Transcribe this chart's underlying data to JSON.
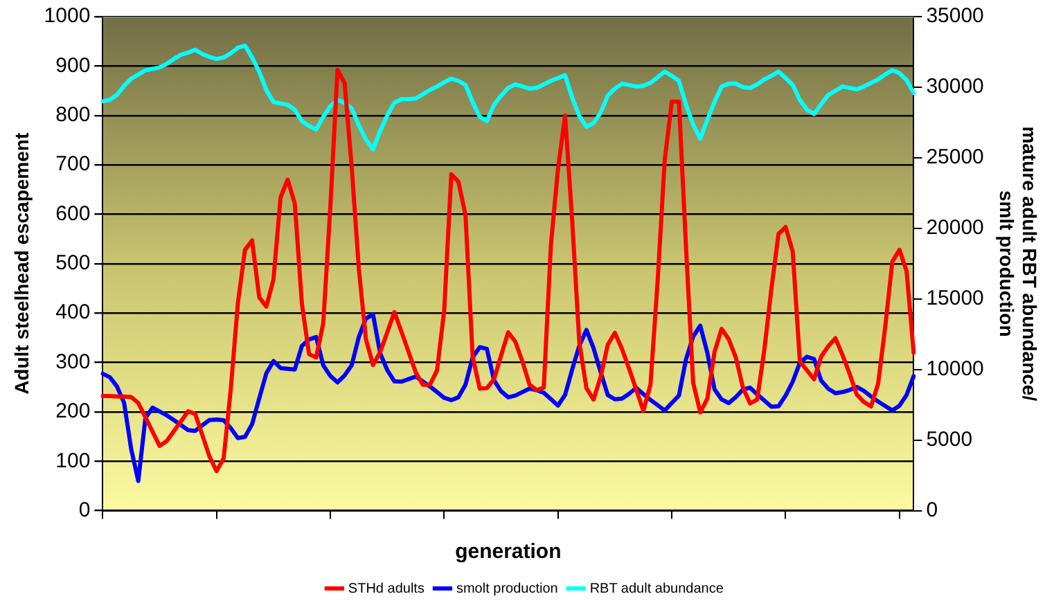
{
  "chart_data": {
    "type": "line",
    "xlabel": "generation",
    "ylabel": "Adult steelhead escapement",
    "y2label": "mature adult RBT abundance/ smlt production",
    "categories": [
      null,
      null,
      null,
      null,
      null,
      null,
      null,
      null,
      null,
      null,
      null,
      null,
      null,
      null,
      null,
      null,
      null,
      null,
      null,
      null,
      null,
      null,
      null,
      null,
      null,
      null,
      null,
      null,
      null,
      null,
      null,
      null,
      null,
      null,
      null,
      null,
      null,
      null,
      null,
      null,
      null,
      null,
      null,
      null,
      null,
      null,
      null,
      null,
      null,
      null,
      null,
      null,
      null,
      null,
      null,
      null,
      null,
      null,
      null,
      null,
      null,
      null,
      null,
      null,
      null,
      null,
      null,
      null,
      null,
      null,
      null,
      null,
      null,
      null,
      null,
      null,
      null,
      null,
      null,
      null,
      null,
      null,
      null,
      null,
      null,
      null,
      null,
      null,
      null,
      null,
      null,
      null,
      null,
      null,
      null,
      null,
      null,
      null,
      null,
      null,
      null,
      null,
      null,
      null,
      null,
      null,
      null,
      null,
      null,
      null,
      null,
      null,
      null,
      null,
      null
    ],
    "series": [
      {
        "name": "STHd adults",
        "color": "#ff0000",
        "values": [
          232,
          232,
          231,
          231,
          230,
          218,
          189,
          160,
          131,
          141,
          161,
          181,
          201,
          196,
          153,
          110,
          80,
          106,
          246,
          420,
          528,
          547,
          432,
          413,
          468,
          634,
          670,
          622,
          419,
          317,
          310,
          379,
          615,
          892,
          866,
          696,
          490,
          347,
          295,
          321,
          361,
          402,
          362,
          321,
          280,
          255,
          255,
          284,
          405,
          681,
          666,
          598,
          312,
          247,
          248,
          266,
          314,
          361,
          342,
          302,
          255,
          244,
          249,
          537,
          692,
          800,
          586,
          340,
          248,
          225,
          271,
          336,
          360,
          327,
          287,
          245,
          202,
          255,
          463,
          709,
          828,
          828,
          532,
          259,
          199,
          227,
          321,
          368,
          347,
          310,
          249,
          217,
          225,
          325,
          449,
          560,
          574,
          524,
          302,
          284,
          266,
          312,
          333,
          349,
          315,
          277,
          235,
          220,
          211,
          257,
          372,
          504,
          528,
          485,
          320
        ]
      },
      {
        "name": "smolt production",
        "color": "#0000ff",
        "axis": "y2",
        "values": [
          9700,
          9450,
          8800,
          7650,
          4370,
          2100,
          6560,
          7290,
          7020,
          6750,
          6420,
          6060,
          5710,
          5650,
          6040,
          6420,
          6460,
          6410,
          5840,
          5140,
          5230,
          6130,
          7950,
          9730,
          10600,
          10100,
          10050,
          10000,
          11670,
          12130,
          12300,
          10300,
          9540,
          9090,
          9580,
          10300,
          12300,
          13610,
          13900,
          11150,
          9960,
          9160,
          9140,
          9320,
          9500,
          9150,
          8800,
          8400,
          7990,
          7830,
          8030,
          8930,
          10860,
          11580,
          11460,
          9240,
          8460,
          8030,
          8150,
          8400,
          8650,
          8540,
          8350,
          7900,
          7450,
          8200,
          10010,
          11690,
          12800,
          11510,
          9810,
          8190,
          7890,
          7940,
          8280,
          8700,
          8260,
          7850,
          7480,
          7100,
          7630,
          8150,
          10730,
          12330,
          13100,
          11170,
          8600,
          7880,
          7620,
          8050,
          8580,
          8710,
          8240,
          7800,
          7360,
          7400,
          8150,
          9140,
          10480,
          10900,
          10740,
          9210,
          8640,
          8320,
          8400,
          8550,
          8760,
          8480,
          8090,
          7730,
          7410,
          7100,
          7440,
          8190,
          9530
        ]
      },
      {
        "name": "RBT adult abundance",
        "color": "#00ffff",
        "axis": "y2",
        "values": [
          29000,
          29100,
          29450,
          30100,
          30600,
          30900,
          31200,
          31300,
          31400,
          31650,
          32000,
          32300,
          32450,
          32650,
          32350,
          32150,
          32000,
          32100,
          32400,
          32800,
          32950,
          32100,
          31100,
          29800,
          28950,
          28850,
          28750,
          28400,
          27600,
          27250,
          27000,
          27900,
          28650,
          29100,
          28900,
          28500,
          27300,
          26300,
          25600,
          26900,
          28000,
          28900,
          29150,
          29150,
          29200,
          29500,
          29800,
          30050,
          30350,
          30600,
          30450,
          30150,
          28950,
          27900,
          27600,
          28750,
          29400,
          29950,
          30200,
          30050,
          29900,
          29950,
          30200,
          30450,
          30650,
          30850,
          29250,
          27950,
          27200,
          27450,
          28200,
          29400,
          29900,
          30250,
          30150,
          30050,
          30100,
          30300,
          30700,
          31100,
          30800,
          30450,
          28750,
          27350,
          26350,
          27700,
          28950,
          30050,
          30250,
          30250,
          30000,
          29950,
          30200,
          30550,
          30800,
          31100,
          30650,
          30150,
          29100,
          28400,
          28100,
          28800,
          29450,
          29750,
          30050,
          29950,
          29850,
          30050,
          30300,
          30550,
          30900,
          31200,
          31000,
          30500,
          29600
        ]
      }
    ],
    "ylim": [
      0,
      1000
    ],
    "yticks": [
      0,
      100,
      200,
      300,
      400,
      500,
      600,
      700,
      800,
      900,
      1000
    ],
    "y2lim": [
      0,
      35000
    ],
    "y2ticks": [
      0,
      5000,
      10000,
      15000,
      20000,
      25000,
      30000,
      35000
    ],
    "grid": "y",
    "legend": "bottom",
    "marker": "none",
    "line_style": "solid"
  }
}
